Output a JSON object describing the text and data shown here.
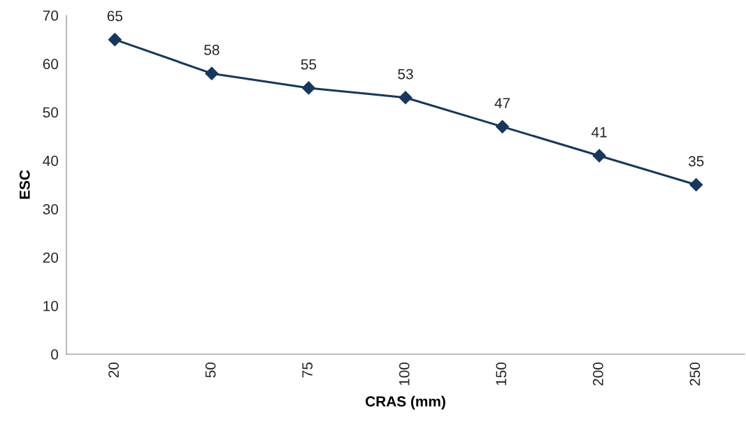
{
  "chart_data": {
    "type": "line",
    "xlabel": "CRAS (mm)",
    "ylabel": "ESC",
    "categories": [
      "20",
      "50",
      "75",
      "100",
      "150",
      "200",
      "250"
    ],
    "series": [
      {
        "color": "#17375e",
        "values": [
          65,
          58,
          55,
          53,
          47,
          41,
          35
        ]
      }
    ],
    "ylim": [
      0,
      70
    ],
    "yticks": [
      0,
      10,
      20,
      30,
      40,
      50,
      60,
      70
    ],
    "data_labels": true,
    "marker": "diamond",
    "line_style": "solid",
    "grid": false,
    "legend": false
  }
}
